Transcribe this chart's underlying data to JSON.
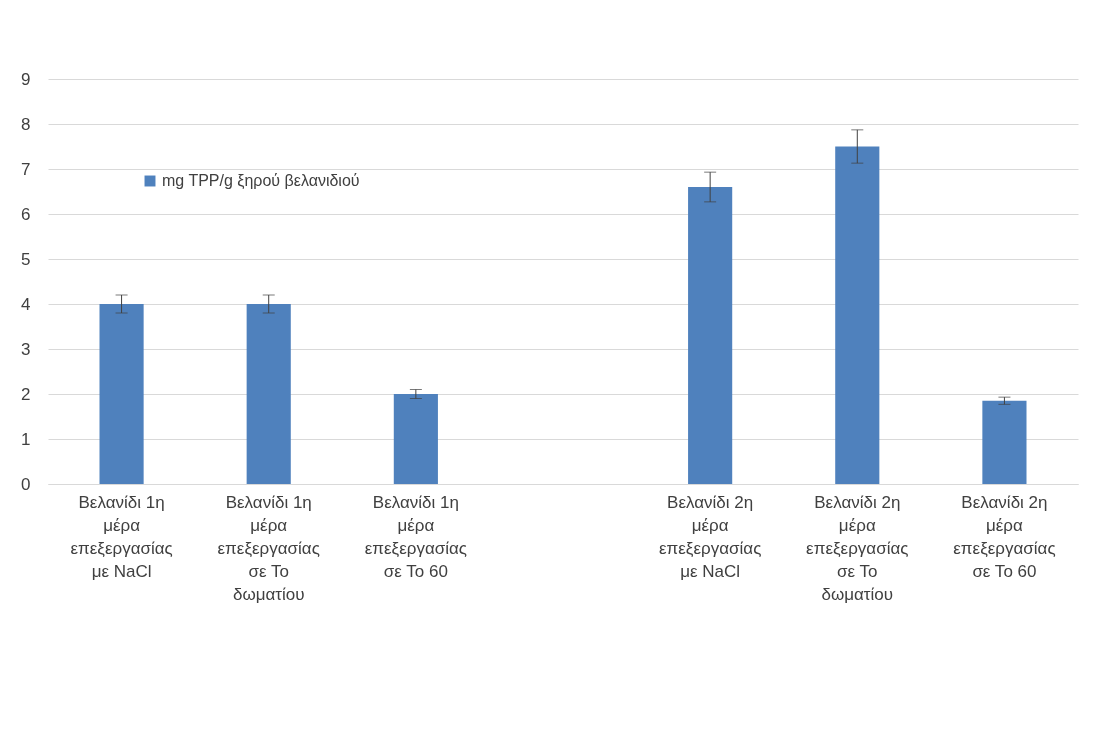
{
  "chart_data": {
    "type": "bar",
    "categories": [
      "Βελανίδι 1η μέρα επεξεργασίας με NaCl",
      "Βελανίδι 1η μέρα επεξεργασίας σε Το δωματίου",
      "Βελανίδι 1η μέρα επεξεργασίας σε Το 60",
      null,
      "Βελανίδι 2η μέρα επεξεργασίας με NaCl",
      "Βελανίδι 2η μέρα επεξεργασίας σε Το δωματίου",
      "Βελανίδι 2η μέρα επεξεργασίας σε Το 60"
    ],
    "series": [
      {
        "name": "mg TPP/g ξηρού βελανιδιού",
        "color": "#4f81bd",
        "values": [
          4.0,
          4.0,
          2.0,
          null,
          6.6,
          7.5,
          1.85
        ],
        "errors": [
          0.2,
          0.2,
          0.1,
          null,
          0.33,
          0.37,
          0.08
        ]
      }
    ],
    "ylim": [
      0,
      9
    ],
    "yticks": [
      0,
      1,
      2,
      3,
      4,
      5,
      6,
      7,
      8,
      9
    ],
    "grid": "y",
    "legend": "top left"
  }
}
